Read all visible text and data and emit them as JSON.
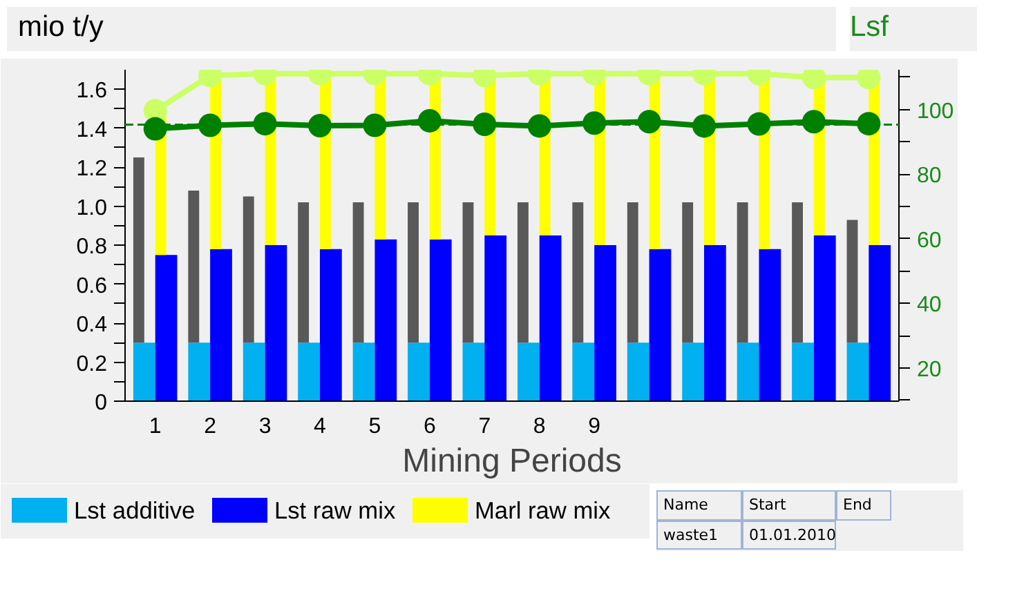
{
  "chart_data": {
    "type": "bar",
    "xlabel": "Mining Periods",
    "ylabel": "mio t/y",
    "y2label": "Lsf",
    "categories": [
      "1",
      "2",
      "3",
      "4",
      "5",
      "6",
      "7",
      "8",
      "9",
      null,
      null,
      null,
      null,
      null
    ],
    "series": [
      {
        "name": "Lst additive",
        "color": "#00b0f0",
        "values": [
          0.3,
          0.3,
          0.3,
          0.3,
          0.3,
          0.3,
          0.3,
          0.3,
          0.3,
          0.3,
          0.3,
          0.3,
          0.3,
          0.3
        ]
      },
      {
        "color": "#595959",
        "base": [
          0.3,
          0.3,
          0.3,
          0.3,
          0.3,
          0.3,
          0.3,
          0.3,
          0.3,
          0.3,
          0.3,
          0.3,
          0.3,
          0.3
        ],
        "values": [
          0.95,
          0.78,
          0.75,
          0.72,
          0.72,
          0.72,
          0.72,
          0.72,
          0.72,
          0.72,
          0.72,
          0.72,
          0.72,
          0.63
        ]
      },
      {
        "name": "Lst raw mix",
        "color": "#0000ff",
        "values": [
          0.75,
          0.78,
          0.8,
          0.78,
          0.83,
          0.83,
          0.85,
          0.85,
          0.8,
          0.78,
          0.8,
          0.78,
          0.85,
          0.8
        ]
      },
      {
        "name": "Marl raw mix",
        "color": "#ffff00",
        "base": [
          0.75,
          0.78,
          0.8,
          0.78,
          0.83,
          0.83,
          0.85,
          0.85,
          0.8,
          0.78,
          0.8,
          0.78,
          0.85,
          0.8
        ],
        "values": [
          0.74,
          0.89,
          0.88,
          0.9,
          0.85,
          0.85,
          0.82,
          0.83,
          0.88,
          0.9,
          0.88,
          0.89,
          0.81,
          0.86
        ]
      },
      {
        "type": "line",
        "color": "#ccff66",
        "marker": "circle",
        "values": [
          1.49,
          1.67,
          1.68,
          1.68,
          1.68,
          1.68,
          1.67,
          1.68,
          1.68,
          1.68,
          1.68,
          1.68,
          1.66,
          1.66
        ]
      },
      {
        "type": "line",
        "axis": "y2",
        "color": "#008000",
        "marker": "circle",
        "values": [
          94.0,
          95.1,
          95.6,
          95.0,
          95.1,
          96.5,
          95.4,
          94.9,
          95.8,
          96.2,
          94.9,
          95.5,
          96.2,
          95.6
        ]
      }
    ],
    "ylim": [
      0,
      1.7
    ],
    "yticks": [
      0,
      {
        "value": 0.1,
        "label": null
      },
      0.2,
      {
        "value": 0.3,
        "label": null
      },
      0.4,
      {
        "value": 0.5,
        "label": null
      },
      0.6,
      {
        "value": 0.7,
        "label": null
      },
      0.8,
      {
        "value": 0.9,
        "label": null
      },
      {
        "value": 1.0,
        "label": "1.0"
      },
      {
        "value": 1.1,
        "label": null
      },
      1.2,
      {
        "value": 1.3,
        "label": null
      },
      1.4,
      {
        "value": 1.5,
        "label": null
      },
      1.6
    ],
    "y2lim": [
      9.7,
      112.3
    ],
    "y2ticks": [
      {
        "value": 10,
        "label": null
      },
      20,
      {
        "value": 30,
        "label": null
      },
      40,
      {
        "value": 50,
        "label": null
      },
      60,
      {
        "value": 70,
        "label": null
      },
      80,
      {
        "value": 90,
        "label": null
      },
      100,
      {
        "value": 110,
        "label": null
      }
    ],
    "ref_lines": [
      {
        "axis": "y2",
        "value": 95.3,
        "color": "#008000",
        "line_style": "dashed"
      }
    ],
    "legend": "bottom",
    "annotations": [
      "Name",
      "Start",
      "End",
      "waste1",
      "01.01.2010"
    ]
  }
}
